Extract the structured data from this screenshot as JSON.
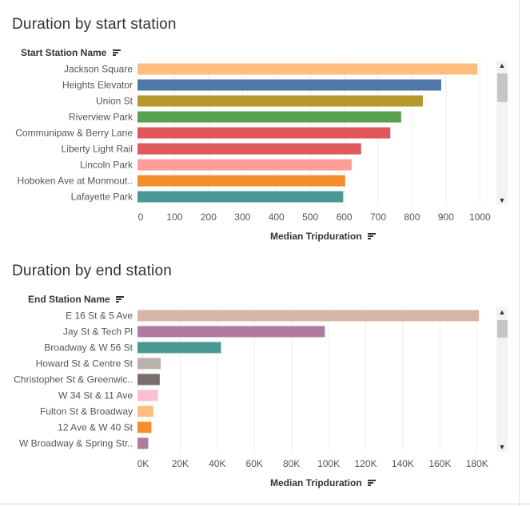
{
  "chart_data": [
    {
      "type": "bar",
      "orientation": "horizontal",
      "title": "Duration by start station",
      "ylabel": "Start Station Name",
      "xlabel": "Median Tripduration",
      "categories": [
        "Jackson Square",
        "Heights Elevator",
        "Union St",
        "Riverview Park",
        "Communipaw & Berry Lane",
        "Liberty Light Rail",
        "Lincoln Park",
        "Hoboken Ave at Monmouth St",
        "Lafayette Park"
      ],
      "category_labels": [
        "Jackson Square",
        "Heights Elevator",
        "Union St",
        "Riverview Park",
        "Communipaw & Berry Lane",
        "Liberty Light Rail",
        "Lincoln Park",
        "Hoboken Ave at Monmout..",
        "Lafayette Park"
      ],
      "values": [
        993,
        886,
        832,
        768,
        736,
        650,
        622,
        603,
        597
      ],
      "colors": [
        "#ffbe7d",
        "#4e79a7",
        "#b6992d",
        "#59a14f",
        "#e15759",
        "#e05a5f",
        "#ff9d9a",
        "#f28e2b",
        "#499894"
      ],
      "xlim": [
        0,
        1050
      ],
      "xticks": [
        0,
        100,
        200,
        300,
        400,
        500,
        600,
        700,
        800,
        900,
        1000
      ],
      "xtick_labels": [
        "0",
        "100",
        "200",
        "300",
        "400",
        "500",
        "600",
        "700",
        "800",
        "900",
        "1000"
      ],
      "grid": true
    },
    {
      "type": "bar",
      "orientation": "horizontal",
      "title": "Duration by end station",
      "ylabel": "End Station Name",
      "xlabel": "Median Tripduration",
      "categories": [
        "E 16 St & 5 Ave",
        "Jay St & Tech Pl",
        "Broadway & W 56 St",
        "Howard St & Centre St",
        "Christopher St & Greenwich St",
        "W 34 St & 11 Ave",
        "Fulton St & Broadway",
        "12 Ave & W 40 St",
        "W Broadway & Spring St"
      ],
      "category_labels": [
        "E 16 St & 5 Ave",
        "Jay St & Tech Pl",
        "Broadway & W 56 St",
        "Howard St & Centre St",
        "Christopher St & Greenwic..",
        "W 34 St & 11 Ave",
        "Fulton St & Broadway",
        "12 Ave & W 40 St",
        "W Broadway & Spring Str.."
      ],
      "values": [
        181000,
        98000,
        42000,
        9500,
        9000,
        8000,
        5500,
        4500,
        2800
      ],
      "colors": [
        "#d7b5a6",
        "#b07aa1",
        "#499894",
        "#bab0ac",
        "#79706e",
        "#fabfd2",
        "#ffbe7d",
        "#f28e2b",
        "#b07aa1"
      ],
      "xlim": [
        -3000,
        187000
      ],
      "xticks": [
        0,
        20000,
        40000,
        60000,
        80000,
        100000,
        120000,
        140000,
        160000,
        180000
      ],
      "xtick_labels": [
        "0K",
        "20K",
        "40K",
        "60K",
        "80K",
        "100K",
        "120K",
        "140K",
        "160K",
        "180K"
      ],
      "grid": true
    }
  ],
  "scroll_arrows": {
    "up": "▲",
    "down": "▼"
  }
}
